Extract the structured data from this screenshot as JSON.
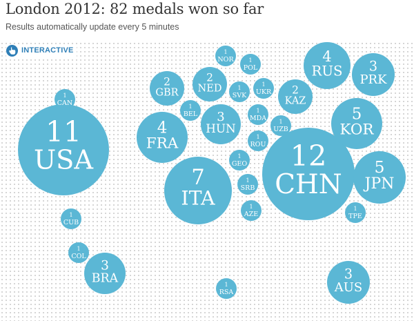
{
  "header": {
    "title": "London 2012: 82 medals won so far",
    "subtitle": "Results automatically update every 5 minutes",
    "interactive_label": "INTERACTIVE"
  },
  "colors": {
    "bubble": "#5bb7d5",
    "accent": "#2f7fb7"
  },
  "chart_data": {
    "type": "bubble",
    "title": "London 2012: 82 medals won so far",
    "total_medals": 82,
    "series": [
      {
        "country": "USA",
        "medals": 11
      },
      {
        "country": "CHN",
        "medals": 12
      },
      {
        "country": "ITA",
        "medals": 7
      },
      {
        "country": "KOR",
        "medals": 5
      },
      {
        "country": "JPN",
        "medals": 5
      },
      {
        "country": "FRA",
        "medals": 4
      },
      {
        "country": "RUS",
        "medals": 4
      },
      {
        "country": "HUN",
        "medals": 3
      },
      {
        "country": "PRK",
        "medals": 3
      },
      {
        "country": "BRA",
        "medals": 3
      },
      {
        "country": "AUS",
        "medals": 3
      },
      {
        "country": "GBR",
        "medals": 2
      },
      {
        "country": "NED",
        "medals": 2
      },
      {
        "country": "KAZ",
        "medals": 2
      },
      {
        "country": "CAN",
        "medals": 1
      },
      {
        "country": "NOR",
        "medals": 1
      },
      {
        "country": "POL",
        "medals": 1
      },
      {
        "country": "SVK",
        "medals": 1
      },
      {
        "country": "UKR",
        "medals": 1
      },
      {
        "country": "BEL",
        "medals": 1
      },
      {
        "country": "MDA",
        "medals": 1
      },
      {
        "country": "UZB",
        "medals": 1
      },
      {
        "country": "ROU",
        "medals": 1
      },
      {
        "country": "GEO",
        "medals": 1
      },
      {
        "country": "SRB",
        "medals": 1
      },
      {
        "country": "AZE",
        "medals": 1
      },
      {
        "country": "TPE",
        "medals": 1
      },
      {
        "country": "CUB",
        "medals": 1
      },
      {
        "country": "COL",
        "medals": 1
      },
      {
        "country": "RSA",
        "medals": 1
      }
    ]
  }
}
